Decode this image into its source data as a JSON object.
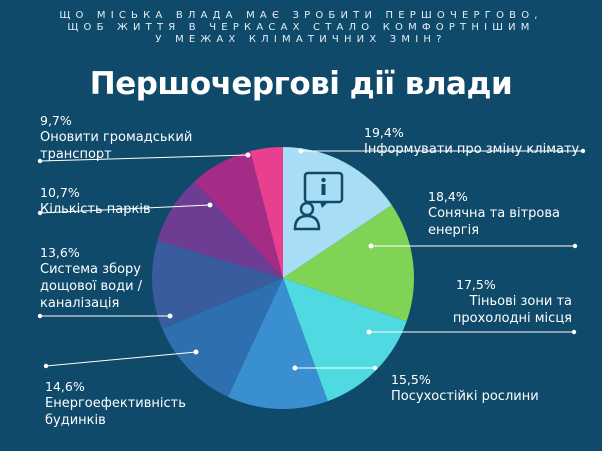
{
  "header": {
    "question": "ЩО МІСЬКА ВЛАДА МАЄ ЗРОБИТИ ПЕРШОЧЕРГОВО,\nЩОБ ЖИТТЯ В ЧЕРКАСАХ СТАЛО КОМФОРТНІШИМ\nУ МЕЖАХ КЛІМАТИЧНИХ ЗМІН?",
    "title": "Першочергові дії влади"
  },
  "colors": {
    "background": "#0f4a6b",
    "leader_line": "#ffffff"
  },
  "chart_data": {
    "type": "pie",
    "title": "Першочергові дії влади",
    "slices": [
      {
        "pct_label": "19,4%",
        "label": "Інформувати про зміну клімату",
        "value": 19.4,
        "color": "#a9dcf5",
        "icon": "info-person-icon"
      },
      {
        "pct_label": "18,4%",
        "label": "Сонячна та вітрова\nенергія",
        "value": 18.4,
        "color": "#7fd456"
      },
      {
        "pct_label": "17,5%",
        "label": "Тіньові зони та\nпрохолодні місця",
        "value": 17.5,
        "color": "#4fdae1"
      },
      {
        "pct_label": "15,5%",
        "label": "Посухостійкі рослини",
        "value": 15.5,
        "color": "#3a8fd0"
      },
      {
        "pct_label": "14,6%",
        "label": "Енергоефективність\nбудинків",
        "value": 14.6,
        "color": "#2e6fb0"
      },
      {
        "pct_label": "13,6%",
        "label": "Система збору\nдощової води /\nканалізація",
        "value": 13.6,
        "color": "#395c9e"
      },
      {
        "pct_label": "10,7%",
        "label": "Кількість парків",
        "value": 10.7,
        "color": "#6d3d93"
      },
      {
        "pct_label": "9,7%",
        "label": "Оновити громадський\nтранспорт",
        "value": 9.7,
        "color": "#a52c86"
      },
      {
        "value": 5.0,
        "color": "#e8408f"
      }
    ]
  }
}
